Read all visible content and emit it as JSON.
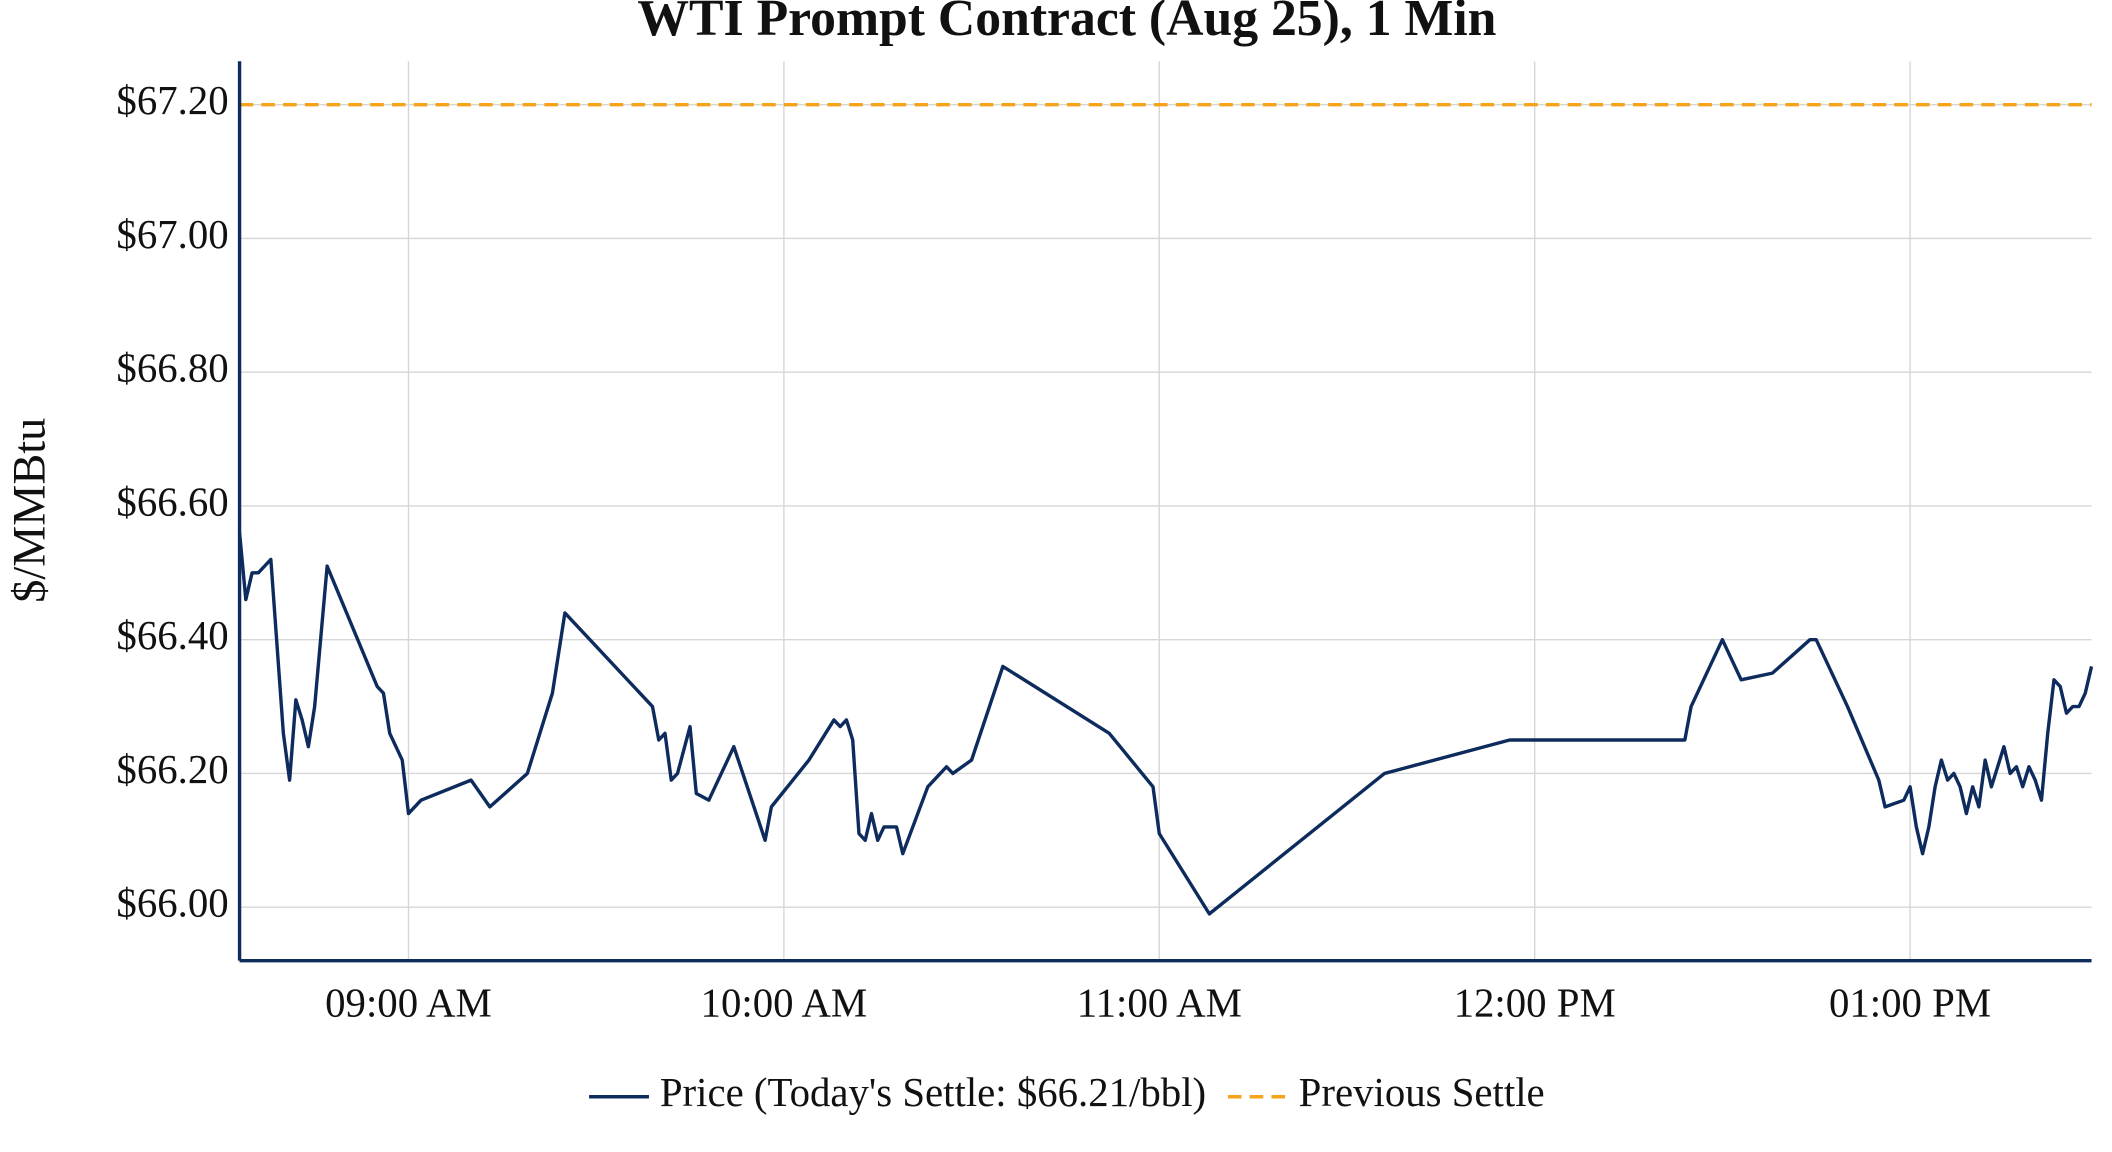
{
  "chart_data": {
    "type": "line",
    "title": "WTI Prompt Contract (Aug 25), 1 Min",
    "y_label": "$/MMBtu",
    "x": [
      "08:33",
      "08:34",
      "08:35",
      "08:36",
      "08:37",
      "08:38",
      "08:40",
      "08:41",
      "08:42",
      "08:43",
      "08:44",
      "08:45",
      "08:47",
      "08:55",
      "08:56",
      "08:57",
      "08:59",
      "09:00",
      "09:02",
      "09:10",
      "09:13",
      "09:19",
      "09:23",
      "09:25",
      "09:39",
      "09:40",
      "09:41",
      "09:42",
      "09:43",
      "09:45",
      "09:46",
      "09:48",
      "09:52",
      "09:57",
      "09:58",
      "10:04",
      "10:08",
      "10:09",
      "10:10",
      "10:11",
      "10:12",
      "10:13",
      "10:14",
      "10:15",
      "10:16",
      "10:18",
      "10:19",
      "10:23",
      "10:26",
      "10:27",
      "10:30",
      "10:35",
      "10:52",
      "10:59",
      "11:00",
      "11:08",
      "11:36",
      "11:56",
      "12:24",
      "12:25",
      "12:30",
      "12:33",
      "12:38",
      "12:44",
      "12:45",
      "12:50",
      "12:55",
      "12:56",
      "12:59",
      "13:00",
      "13:01",
      "13:02",
      "13:03",
      "13:04",
      "13:05",
      "13:06",
      "13:07",
      "13:08",
      "13:09",
      "13:10",
      "13:11",
      "13:12",
      "13:13",
      "13:14",
      "13:15",
      "13:16",
      "13:17",
      "13:18",
      "13:19",
      "13:20",
      "13:21",
      "13:22",
      "13:23",
      "13:24",
      "13:25",
      "13:26",
      "13:27",
      "13:28",
      "13:29"
    ],
    "series": [
      {
        "name": "Price (Today's Settle: $66.21/bbl)",
        "color": "#0d2b5c",
        "values": [
          66.56,
          66.46,
          66.5,
          66.5,
          66.51,
          66.52,
          66.26,
          66.19,
          66.31,
          66.28,
          66.24,
          66.3,
          66.51,
          66.33,
          66.32,
          66.26,
          66.22,
          66.14,
          66.16,
          66.19,
          66.15,
          66.2,
          66.32,
          66.44,
          66.3,
          66.25,
          66.26,
          66.19,
          66.2,
          66.27,
          66.17,
          66.16,
          66.24,
          66.1,
          66.15,
          66.22,
          66.28,
          66.27,
          66.28,
          66.25,
          66.11,
          66.1,
          66.14,
          66.1,
          66.12,
          66.12,
          66.08,
          66.18,
          66.21,
          66.2,
          66.22,
          66.36,
          66.26,
          66.18,
          66.11,
          65.99,
          66.2,
          66.25,
          66.25,
          66.3,
          66.4,
          66.34,
          66.35,
          66.4,
          66.4,
          66.3,
          66.19,
          66.15,
          66.16,
          66.18,
          66.12,
          66.08,
          66.12,
          66.18,
          66.22,
          66.19,
          66.2,
          66.18,
          66.14,
          66.18,
          66.15,
          66.22,
          66.18,
          66.21,
          66.24,
          66.2,
          66.21,
          66.18,
          66.21,
          66.19,
          66.16,
          66.26,
          66.34,
          66.33,
          66.29,
          66.3,
          66.3,
          66.32,
          66.36
        ]
      }
    ],
    "hlines": [
      {
        "name": "Previous Settle",
        "value": 67.2,
        "color": "#f5a31a"
      }
    ],
    "xlim": [
      "08:33",
      "13:29"
    ],
    "xticks": [
      {
        "value": "09:00",
        "label": "09:00 AM"
      },
      {
        "value": "10:00",
        "label": "10:00 AM"
      },
      {
        "value": "11:00",
        "label": "11:00 AM"
      },
      {
        "value": "12:00",
        "label": "12:00 PM"
      },
      {
        "value": "13:00",
        "label": "01:00 PM"
      }
    ],
    "ylim": [
      65.92,
      67.265
    ],
    "yticks": [
      {
        "value": 66.0,
        "label": "$66.00"
      },
      {
        "value": 66.2,
        "label": "$66.20"
      },
      {
        "value": 66.4,
        "label": "$66.40"
      },
      {
        "value": 66.6,
        "label": "$66.60"
      },
      {
        "value": 66.8,
        "label": "$66.80"
      },
      {
        "value": 67.0,
        "label": "$67.00"
      },
      {
        "value": 67.2,
        "label": "$67.20"
      }
    ],
    "grid": true,
    "legend": "bottom"
  }
}
